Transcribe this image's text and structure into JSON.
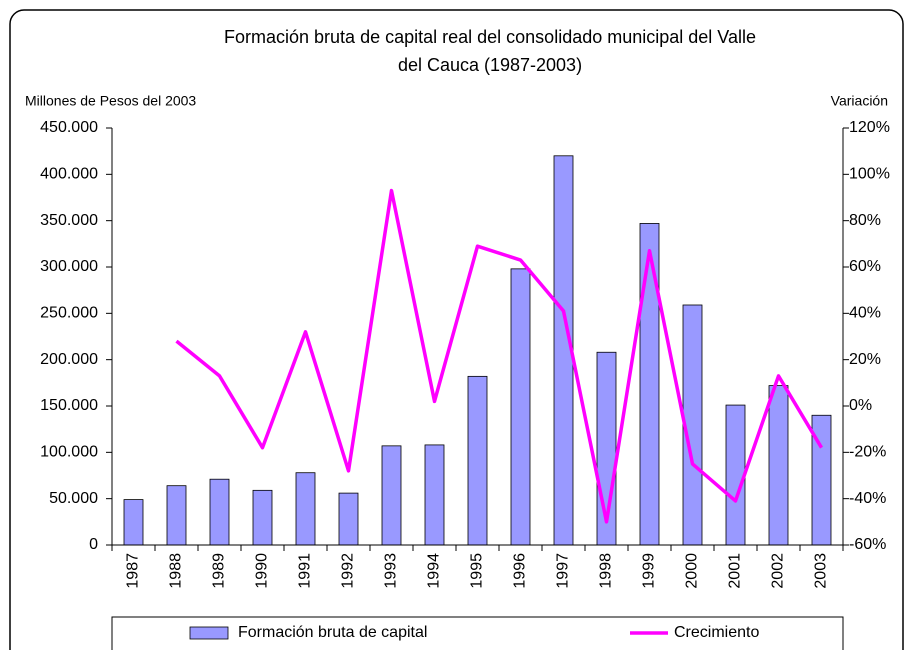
{
  "chart_data": {
    "type": "bar-line",
    "title": [
      "Formación bruta de capital real del  consolidado municipal del Valle",
      "del Cauca  (1987-2003)"
    ],
    "y_label": "Millones de Pesos del 2003",
    "y2_label": "Variación",
    "categories": [
      "1987",
      "1988",
      "1989",
      "1990",
      "1991",
      "1992",
      "1993",
      "1994",
      "1995",
      "1996",
      "1997",
      "1998",
      "1999",
      "2000",
      "2001",
      "2002",
      "2003"
    ],
    "series": [
      {
        "name": "Formación bruta de capital",
        "type": "bar",
        "color": "#9999ff",
        "values": [
          49000,
          64000,
          71000,
          59000,
          78000,
          56000,
          107000,
          108000,
          182000,
          298000,
          420000,
          208000,
          347000,
          259000,
          151000,
          172000,
          140000
        ]
      },
      {
        "name": "Crecimiento",
        "type": "line",
        "axis": "y2",
        "color": "#ff00ff",
        "values": [
          null,
          28,
          13,
          -18,
          32,
          -28,
          93,
          2,
          69,
          63,
          41,
          -50,
          67,
          -25,
          -41,
          13,
          -18
        ]
      }
    ],
    "ylim": [
      0,
      450000
    ],
    "yticks": [
      0,
      {
        "value": 50000,
        "label": "50.000"
      },
      {
        "value": 100000,
        "label": "100.000"
      },
      {
        "value": 150000,
        "label": "150.000"
      },
      {
        "value": 200000,
        "label": "200.000"
      },
      {
        "value": 250000,
        "label": "250.000"
      },
      {
        "value": 300000,
        "label": "300.000"
      },
      {
        "value": 350000,
        "label": "350.000"
      },
      {
        "value": 400000,
        "label": "400.000"
      },
      {
        "value": 450000,
        "label": "450.000"
      }
    ],
    "y2lim": [
      -60,
      120
    ],
    "y2ticks": [
      {
        "value": -60,
        "label": "-60%"
      },
      {
        "value": -40,
        "label": "-40%"
      },
      {
        "value": -20,
        "label": "-20%"
      },
      {
        "value": 0,
        "label": "0%"
      },
      {
        "value": 20,
        "label": "20%"
      },
      {
        "value": 40,
        "label": "40%"
      },
      {
        "value": 60,
        "label": "60%"
      },
      {
        "value": 80,
        "label": "80%"
      },
      {
        "value": 100,
        "label": "100%"
      },
      {
        "value": 120,
        "label": "120%"
      }
    ],
    "legend": "bottom"
  }
}
